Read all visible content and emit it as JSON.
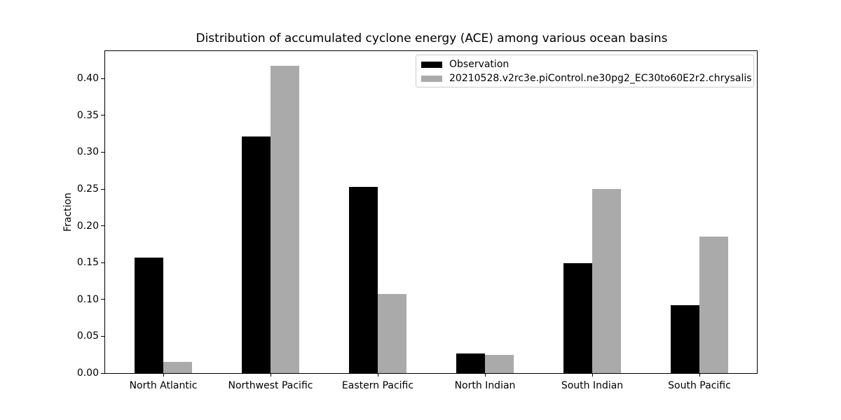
{
  "chart_data": {
    "type": "bar",
    "title": "Distribution of accumulated cyclone energy (ACE) among various ocean basins",
    "xlabel": "",
    "ylabel": "Fraction",
    "categories": [
      "North Atlantic",
      "Northwest Pacific",
      "Eastern Pacific",
      "North Indian",
      "South Indian",
      "South Pacific"
    ],
    "series": [
      {
        "name": "Observation",
        "color": "#000000",
        "values": [
          0.157,
          0.321,
          0.253,
          0.027,
          0.149,
          0.092
        ]
      },
      {
        "name": "20210528.v2rc3e.piControl.ne30pg2_EC30to60E2r2.chrysalis",
        "color": "#aaaaaa",
        "values": [
          0.015,
          0.417,
          0.107,
          0.025,
          0.25,
          0.185
        ]
      }
    ],
    "ylim": [
      0,
      0.4374
    ],
    "yticks": [
      0,
      0.05,
      0.1,
      0.15,
      0.2,
      0.25,
      0.3,
      0.35,
      0.4
    ],
    "ytick_labels": [
      "0.00",
      "0.05",
      "0.10",
      "0.15",
      "0.20",
      "0.25",
      "0.30",
      "0.35",
      "0.40"
    ],
    "legend": {
      "position": "upper right",
      "entries": [
        "Observation",
        "20210528.v2rc3e.piControl.ne30pg2_EC30to60E2r2.chrysalis"
      ]
    },
    "grid": false,
    "background_color": "#ffffff",
    "frame_color": "#000000"
  }
}
